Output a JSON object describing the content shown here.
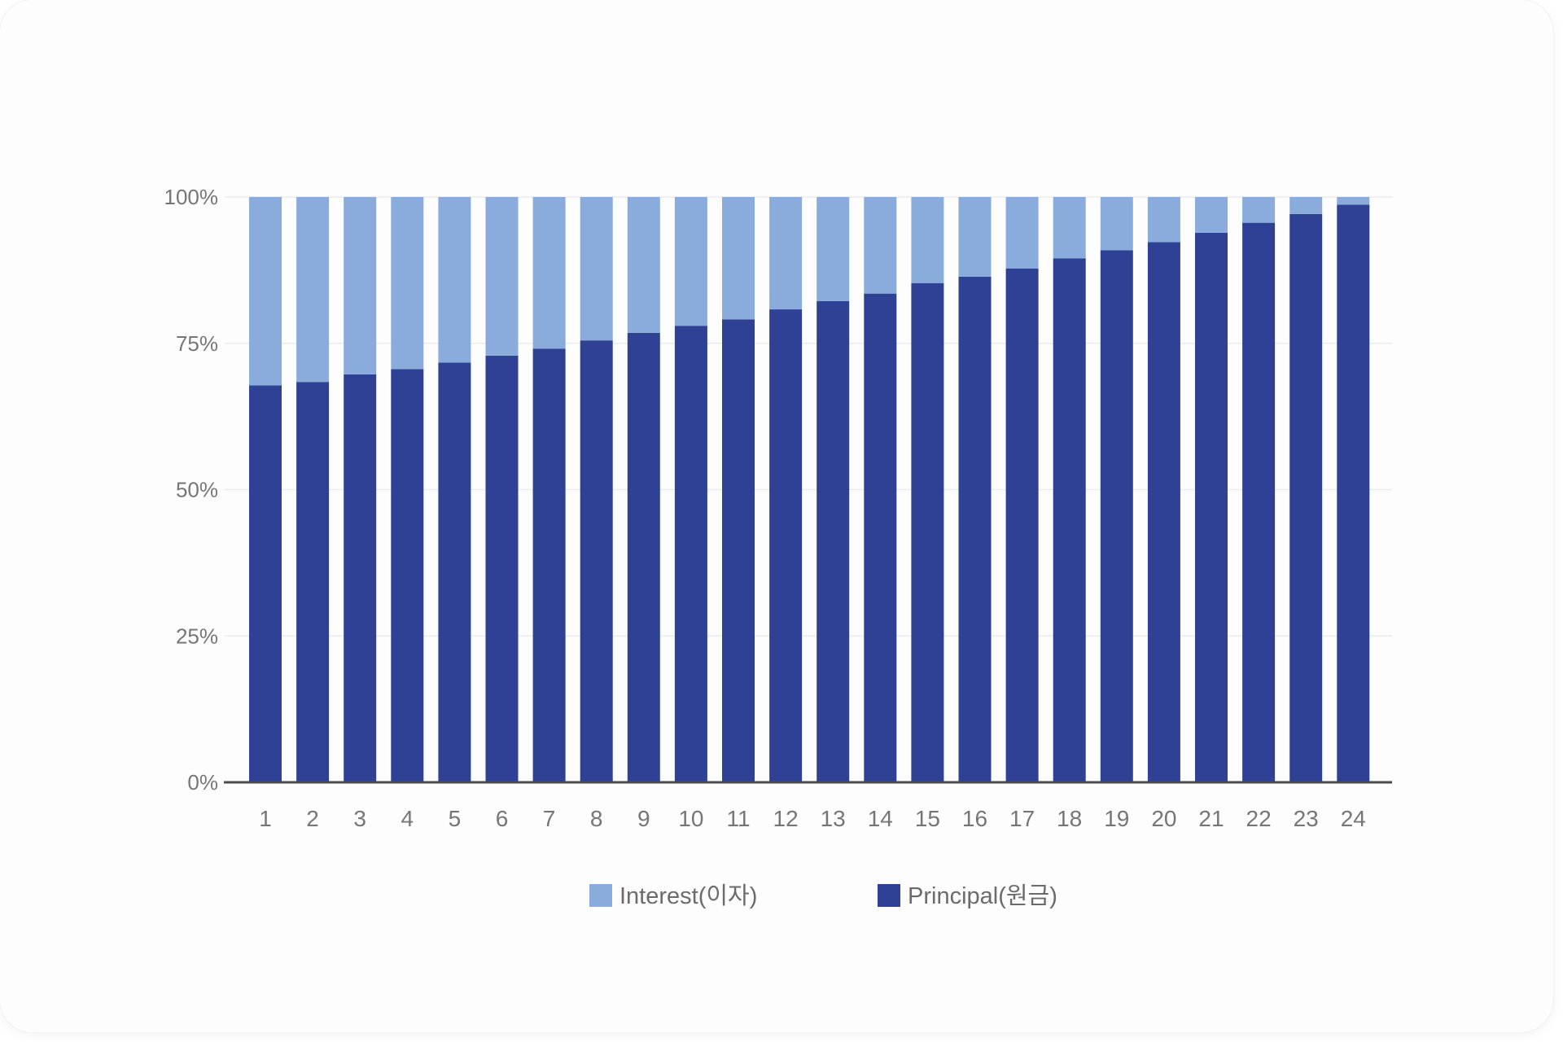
{
  "chart_data": {
    "type": "bar",
    "stacked": true,
    "percent": true,
    "categories": [
      "1",
      "2",
      "3",
      "4",
      "5",
      "6",
      "7",
      "8",
      "9",
      "10",
      "11",
      "12",
      "13",
      "14",
      "15",
      "16",
      "17",
      "18",
      "19",
      "20",
      "21",
      "22",
      "23",
      "24"
    ],
    "series": [
      {
        "name": "Principal(원금)",
        "color": "#2f4195",
        "values": [
          67.8,
          68.4,
          69.7,
          70.6,
          71.7,
          72.9,
          74.1,
          75.5,
          76.8,
          78.0,
          79.1,
          80.8,
          82.2,
          83.5,
          85.3,
          86.4,
          87.8,
          89.5,
          90.9,
          92.3,
          93.9,
          95.6,
          97.1,
          98.7
        ]
      },
      {
        "name": "Interest(이자)",
        "color": "#8aacdd",
        "values": [
          32.2,
          31.6,
          30.3,
          29.4,
          28.3,
          27.1,
          25.9,
          24.5,
          23.2,
          22.0,
          20.9,
          19.2,
          17.8,
          16.5,
          14.7,
          13.6,
          12.2,
          10.5,
          9.1,
          7.7,
          6.1,
          4.4,
          2.9,
          1.3
        ]
      }
    ],
    "yticks": [
      "0%",
      "25%",
      "50%",
      "75%",
      "100%"
    ],
    "ylim": [
      0,
      100
    ],
    "grid": true,
    "legend": {
      "position": "bottom",
      "items": [
        "Interest(이자)",
        "Principal(원금)"
      ]
    },
    "title": "",
    "xlabel": "",
    "ylabel": ""
  }
}
